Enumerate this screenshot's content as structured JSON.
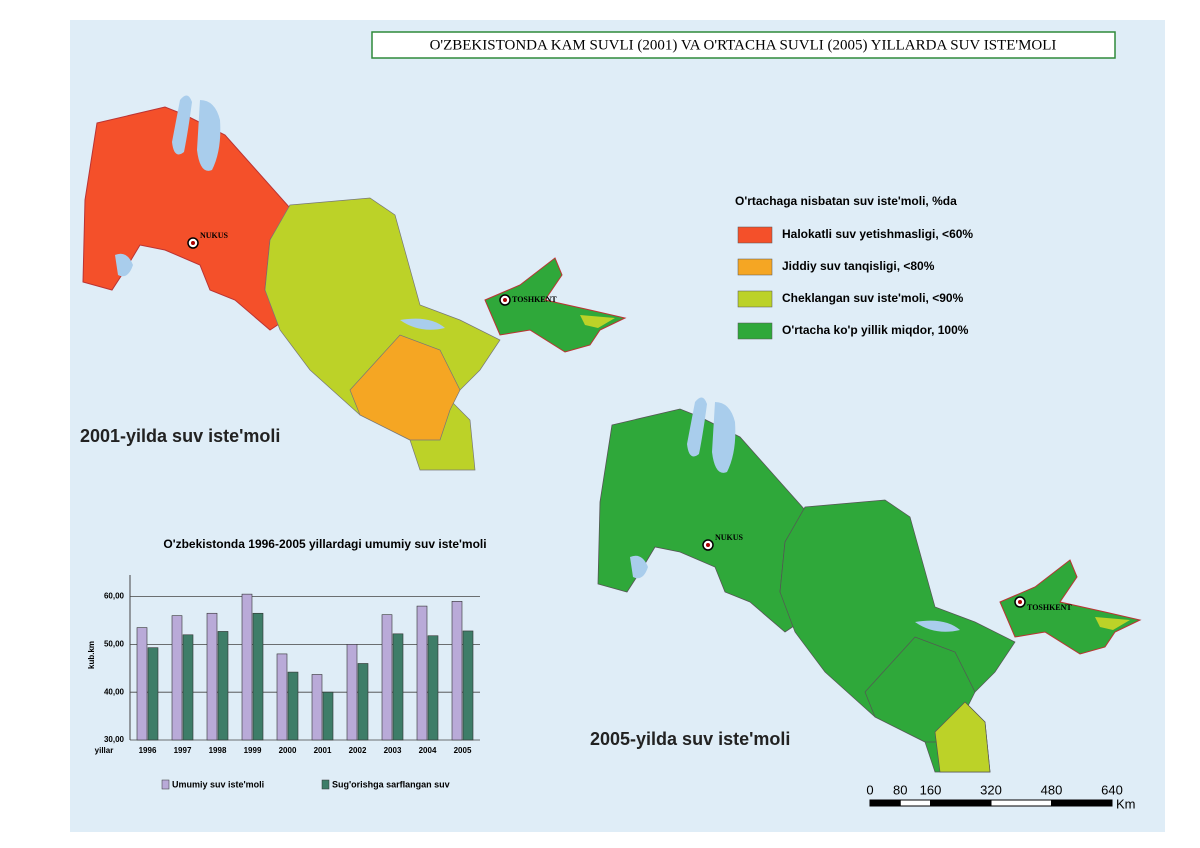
{
  "title": "O'ZBEKISTONDA KAM SUVLI (2001) VA O'RTACHA SUVLI (2005) YILLARDA SUV ISTE'MOLI",
  "legend": {
    "title": "O'rtachaga nisbatan suv iste'moli, %da",
    "items": [
      {
        "label": "Halokatli suv yetishmasligi, <60%",
        "color": "#f4502a"
      },
      {
        "label": "Jiddiy suv tanqisligi, <80%",
        "color": "#f5a623"
      },
      {
        "label": "Cheklangan suv iste'moli, <90%",
        "color": "#bcd228"
      },
      {
        "label": "O'rtacha ko'p yillik miqdor, 100%",
        "color": "#2fa83a"
      }
    ]
  },
  "maps": [
    {
      "title": "2001-yilda suv iste'moli",
      "cities": [
        "NUKUS",
        "TOSHKENT"
      ]
    },
    {
      "title": "2005-yilda suv iste'moli",
      "cities": [
        "NUKUS",
        "TOSHKENT"
      ]
    }
  ],
  "scale": {
    "ticks": [
      0,
      80,
      160,
      320,
      480,
      640
    ],
    "unit": "Km"
  },
  "chart_data": {
    "type": "bar",
    "title": "O'zbekistonda 1996-2005 yillardagi umumiy suv iste'moli",
    "y_label": "kub.km",
    "x_label": "yillar",
    "categories": [
      "1996",
      "1997",
      "1998",
      "1999",
      "2000",
      "2001",
      "2002",
      "2003",
      "2004",
      "2005"
    ],
    "series": [
      {
        "name": "Umumiy suv iste'moli",
        "color": "#b9aad8",
        "values": [
          53.5,
          56,
          56.5,
          60.5,
          48,
          43.7,
          50,
          56.2,
          58,
          59
        ]
      },
      {
        "name": "Sug'orishga sarflangan suv",
        "color": "#3e7d68",
        "values": [
          49.3,
          52,
          52.7,
          56.5,
          44.2,
          40,
          46,
          52.2,
          51.8,
          52.8
        ]
      }
    ],
    "ylim": [
      30,
      64.5
    ],
    "yticks": [
      {
        "value": 30,
        "label": "30,00"
      },
      {
        "value": 40,
        "label": "40,00"
      },
      {
        "value": 50,
        "label": "50,00"
      },
      {
        "value": 60,
        "label": "60,00"
      }
    ],
    "grid": true
  }
}
